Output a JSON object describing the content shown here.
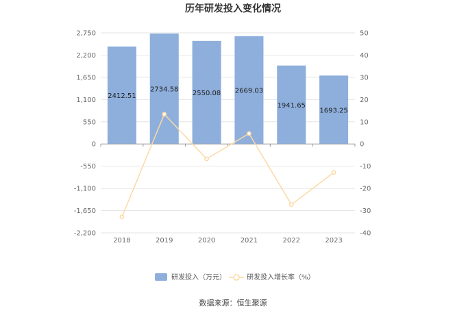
{
  "chart_data": {
    "type": "bar",
    "title": "历年研发投入变化情况",
    "categories": [
      "2018",
      "2019",
      "2020",
      "2021",
      "2022",
      "2023"
    ],
    "series": [
      {
        "name": "研发投入（万元）",
        "type": "bar",
        "axis": "left",
        "color": "#8eafdc",
        "values": [
          2412.51,
          2734.58,
          2550.08,
          2669.03,
          1941.65,
          1693.25
        ]
      },
      {
        "name": "研发投入增长率（%）",
        "type": "line",
        "axis": "right",
        "color": "#fcd9a4",
        "values": [
          -32.8,
          13.4,
          -6.7,
          4.7,
          -27.3,
          -12.8
        ]
      }
    ],
    "y_left": {
      "ylim": [
        -2200,
        2750
      ],
      "ticks": [
        -2200,
        -1650,
        -1100,
        -550,
        0,
        550,
        1100,
        1650,
        2200,
        2750
      ]
    },
    "y_right": {
      "ylim": [
        -40,
        50
      ],
      "ticks": [
        -40,
        -30,
        -20,
        -10,
        0,
        10,
        20,
        30,
        40,
        50
      ]
    },
    "grid": true,
    "legend_position": "bottom"
  },
  "source": "数据来源：恒生聚源"
}
